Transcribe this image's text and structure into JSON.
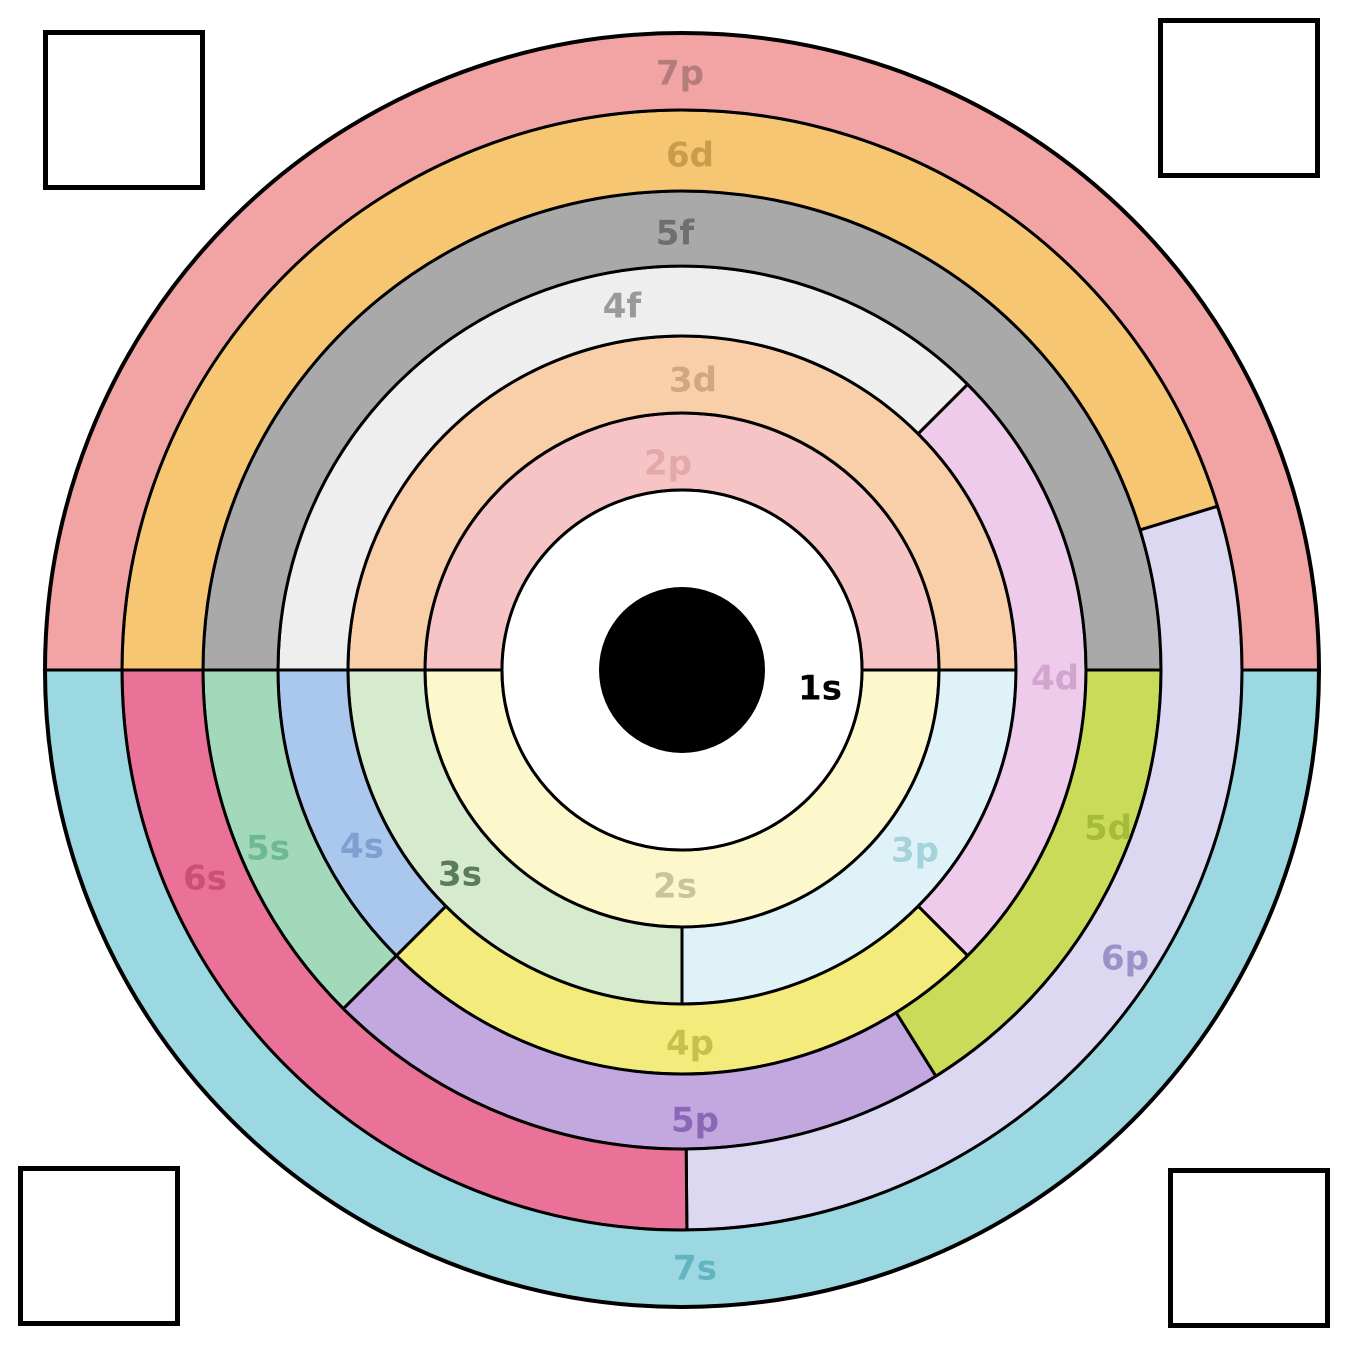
{
  "answer_boxes": [
    {
      "position": "top-left",
      "value": ""
    },
    {
      "position": "top-right",
      "value": ""
    },
    {
      "position": "bottom-left",
      "value": ""
    },
    {
      "position": "bottom-right",
      "value": ""
    }
  ],
  "nucleus": {
    "label": "1s",
    "color": "#000000"
  },
  "orbitals": [
    {
      "label": "2p",
      "color": "#f6c4c4",
      "text_color": "#e3a8a8"
    },
    {
      "label": "2s",
      "color": "#fcf8cc",
      "text_color": "#c9c49a"
    },
    {
      "label": "3d",
      "color": "#f9cfaa",
      "text_color": "#d3a67e"
    },
    {
      "label": "3p",
      "color": "#def2f8",
      "text_color": "#a6d2dc"
    },
    {
      "label": "3s",
      "color": "#d6ebcd",
      "text_color": "#5c7a5c"
    },
    {
      "label": "4f",
      "color": "#eeeeee",
      "text_color": "#9a9a9a"
    },
    {
      "label": "4d",
      "color": "#eecbeb",
      "text_color": "#d2a4d0"
    },
    {
      "label": "4p",
      "color": "#f3ec7c",
      "text_color": "#c8bf4c"
    },
    {
      "label": "4s",
      "color": "#aac8ee",
      "text_color": "#7f9fd0"
    },
    {
      "label": "5f",
      "color": "#a9a9a9",
      "text_color": "#6f6f6f"
    },
    {
      "label": "5d",
      "color": "#cadb5a",
      "text_color": "#a6bb38"
    },
    {
      "label": "5p",
      "color": "#c2a8de",
      "text_color": "#8c67b8"
    },
    {
      "label": "5s",
      "color": "#a2d9bb",
      "text_color": "#6cb993"
    },
    {
      "label": "6d",
      "color": "#f6c672",
      "text_color": "#cb9c4c"
    },
    {
      "label": "6p",
      "color": "#dcd8f2",
      "text_color": "#9d92c8"
    },
    {
      "label": "6s",
      "color": "#ea7198",
      "text_color": "#cc4f78"
    },
    {
      "label": "7p",
      "color": "#f2a4a4",
      "text_color": "#b57c7c"
    },
    {
      "label": "7s",
      "color": "#9cd8e1",
      "text_color": "#62b4c1"
    }
  ]
}
